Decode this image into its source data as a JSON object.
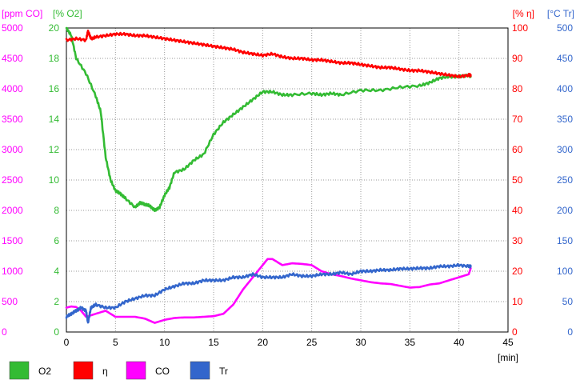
{
  "chart_data": {
    "type": "line",
    "xlabel": "[min]",
    "xlim": [
      0,
      45
    ],
    "x_ticks": [
      "0",
      "5",
      "10",
      "15",
      "20",
      "25",
      "30",
      "35",
      "40",
      "45"
    ],
    "grid": true,
    "legend_placement": "bottom",
    "axes": [
      {
        "id": "co",
        "label": "[ppm CO]",
        "side": "left",
        "color": "#ff00ff",
        "range": [
          0,
          5000
        ],
        "ticks": [
          "0",
          "500",
          "1000",
          "1500",
          "2000",
          "2500",
          "3000",
          "3500",
          "4000",
          "4500",
          "5000"
        ]
      },
      {
        "id": "o2",
        "label": "[% O2]",
        "side": "left",
        "color": "#33bb33",
        "range": [
          0,
          20
        ],
        "ticks": [
          "0",
          "2",
          "4",
          "6",
          "8",
          "10",
          "12",
          "14",
          "16",
          "18",
          "20"
        ]
      },
      {
        "id": "eta",
        "label": "[% η]",
        "side": "right",
        "color": "#ff0000",
        "range": [
          0,
          100
        ],
        "ticks": [
          "0",
          "10",
          "20",
          "30",
          "40",
          "50",
          "60",
          "70",
          "80",
          "90",
          "100"
        ]
      },
      {
        "id": "tr",
        "label": "[°C Tr]",
        "side": "right",
        "color": "#3366cc",
        "range": [
          0,
          500
        ],
        "ticks": [
          "0",
          "50",
          "100",
          "150",
          "200",
          "250",
          "300",
          "350",
          "400",
          "450",
          "500"
        ]
      }
    ],
    "series": [
      {
        "name": "O2",
        "axis": "o2",
        "color": "#33bb33",
        "x": [
          0,
          0.5,
          1,
          2,
          3,
          3.5,
          4,
          4.5,
          5,
          5.5,
          6,
          7,
          7.5,
          8,
          8.5,
          9,
          9.5,
          10,
          10.5,
          11,
          12,
          13,
          14,
          15,
          16,
          17,
          18,
          19,
          20,
          21,
          22,
          23,
          25,
          26,
          27,
          28,
          30,
          32,
          34,
          36,
          37,
          38,
          39,
          40,
          41,
          41.2
        ],
        "y": [
          20,
          19.5,
          18,
          17,
          15.5,
          14.5,
          11.5,
          10,
          9.3,
          9.1,
          8.8,
          8.2,
          8.5,
          8.4,
          8.3,
          8,
          8.2,
          9,
          9.5,
          10.5,
          10.7,
          11.3,
          11.7,
          13.0,
          13.8,
          14.3,
          14.8,
          15.3,
          15.8,
          15.8,
          15.6,
          15.6,
          15.7,
          15.6,
          15.7,
          15.6,
          15.9,
          15.9,
          16.1,
          16.2,
          16.4,
          16.7,
          16.8,
          16.8,
          16.9,
          16.8
        ]
      },
      {
        "name": "η",
        "axis": "eta",
        "color": "#ff0000",
        "x": [
          0,
          1,
          2,
          2.2,
          2.5,
          3,
          4,
          5,
          6,
          7,
          8,
          9,
          10,
          11,
          12,
          13,
          14,
          15,
          16,
          17,
          18,
          19,
          20,
          21,
          22,
          23,
          24,
          25,
          26,
          27,
          28,
          29,
          30,
          31,
          32,
          33,
          34,
          35,
          36,
          37,
          38,
          39,
          40,
          41,
          41.2
        ],
        "y": [
          96,
          96.5,
          96,
          99,
          96.5,
          97,
          97.5,
          98,
          98,
          97.5,
          97.5,
          97,
          96.5,
          96,
          95.5,
          95,
          94.5,
          94,
          93.5,
          93,
          92,
          91.5,
          91,
          91.5,
          90.5,
          90,
          90,
          89.5,
          89.5,
          89,
          88.5,
          88.5,
          88,
          87.5,
          87,
          87,
          86.5,
          86,
          86,
          85.5,
          85,
          84.5,
          84,
          84.5,
          84.5
        ]
      },
      {
        "name": "CO",
        "axis": "co",
        "color": "#ff00ff",
        "x": [
          0,
          0.5,
          1,
          1.5,
          2,
          3,
          4,
          5,
          7,
          8,
          9,
          10,
          11,
          12,
          13,
          14,
          15,
          16,
          17,
          18,
          19,
          20,
          20.5,
          21,
          22,
          23,
          24,
          25,
          26,
          27,
          28,
          29,
          30,
          31,
          32,
          33,
          34,
          35,
          36,
          37,
          38,
          39,
          40,
          41,
          41.2
        ],
        "y": [
          400,
          420,
          410,
          350,
          250,
          300,
          350,
          250,
          250,
          220,
          150,
          200,
          230,
          240,
          240,
          250,
          260,
          300,
          450,
          700,
          900,
          1100,
          1200,
          1200,
          1100,
          1130,
          1120,
          1100,
          1000,
          950,
          920,
          880,
          850,
          820,
          800,
          790,
          760,
          730,
          740,
          780,
          800,
          850,
          900,
          950,
          1050
        ]
      },
      {
        "name": "Tr",
        "axis": "tr",
        "color": "#3366cc",
        "x": [
          0,
          0.5,
          1,
          1.5,
          2,
          2.2,
          2.5,
          3,
          4,
          5,
          6,
          7,
          8,
          9,
          10,
          11,
          12,
          13,
          14,
          15,
          16,
          17,
          18,
          19,
          20,
          21,
          22,
          23,
          24,
          25,
          26,
          27,
          28,
          29,
          30,
          31,
          32,
          33,
          34,
          35,
          36,
          37,
          38,
          39,
          40,
          41,
          41.2
        ],
        "y": [
          25,
          30,
          35,
          40,
          35,
          15,
          40,
          45,
          40,
          40,
          50,
          55,
          60,
          60,
          70,
          75,
          80,
          80,
          85,
          85,
          85,
          90,
          90,
          95,
          90,
          90,
          90,
          95,
          92,
          92,
          95,
          95,
          98,
          95,
          100,
          100,
          102,
          102,
          104,
          104,
          105,
          105,
          108,
          108,
          110,
          108,
          108
        ]
      }
    ]
  }
}
